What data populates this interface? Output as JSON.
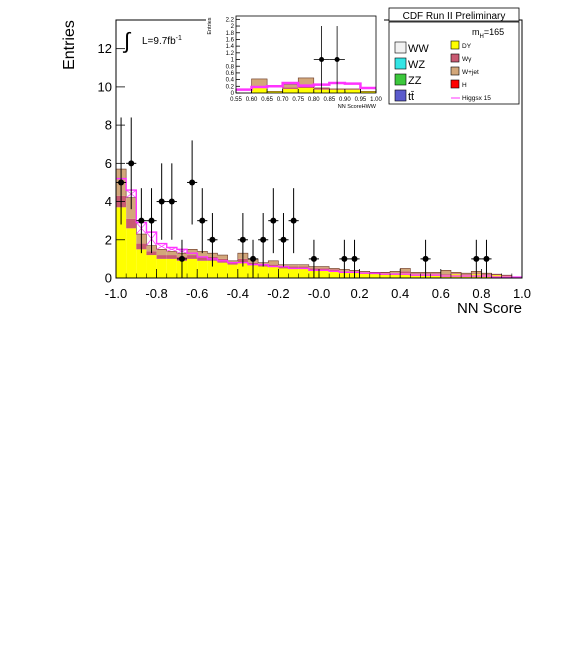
{
  "chart_data": [
    {
      "type": "bar",
      "title": "CDF Run II Preliminary",
      "xlabel": "NN Score",
      "ylabel": "Entries",
      "xlim": [
        -1.0,
        1.0
      ],
      "ylim": [
        0,
        13.5
      ],
      "x_ticks": [
        "-1.0",
        "-0.8",
        "-0.6",
        "-0.4",
        "-0.2",
        "-0.0",
        "0.2",
        "0.4",
        "0.6",
        "0.8",
        "1.0"
      ],
      "x_tick_values": [
        -1.0,
        -0.8,
        -0.6,
        -0.4,
        -0.2,
        0.0,
        0.2,
        0.4,
        0.6,
        0.8,
        1.0
      ],
      "y_ticks": [
        "0",
        "2",
        "4",
        "6",
        "8",
        "10",
        "12"
      ],
      "y_tick_values": [
        0,
        2,
        4,
        6,
        8,
        10,
        12
      ],
      "luminosity_label": "L=9.7fb",
      "luminosity_exponent": "-1",
      "mass_label": "m",
      "mass_subscript": "H",
      "mass_value": "=165",
      "legend_placement": "top-right",
      "legend_left": [
        {
          "label": "WW",
          "color": "#f2f2f2"
        },
        {
          "label": "WZ",
          "color": "#33e5e5"
        },
        {
          "label": "ZZ",
          "color": "#3cc83c"
        },
        {
          "label": "tt̄",
          "color": "#5a5acc"
        }
      ],
      "legend_right": [
        {
          "label": "DY",
          "color": "#ffff00",
          "kind": "box"
        },
        {
          "label": "Wγ",
          "color": "#c85a72",
          "kind": "box"
        },
        {
          "label": "W+jet",
          "color": "#d2a77a",
          "kind": "box"
        },
        {
          "label": "H",
          "color": "#ff0000",
          "kind": "box"
        },
        {
          "label": "Higgsx 15",
          "color": "#ff33ff",
          "kind": "line"
        }
      ],
      "bin_width": 0.05,
      "bin_edges_start": -1.0,
      "bins": [
        {
          "dy": 3.7,
          "wgamma": 0.6,
          "wjet": 1.4
        },
        {
          "dy": 2.6,
          "wgamma": 0.5,
          "wjet": 1.1
        },
        {
          "dy": 1.5,
          "wgamma": 0.3,
          "wjet": 0.5
        },
        {
          "dy": 1.2,
          "wgamma": 0.2,
          "wjet": 0.3
        },
        {
          "dy": 1.0,
          "wgamma": 0.2,
          "wjet": 0.3
        },
        {
          "dy": 1.0,
          "wgamma": 0.2,
          "wjet": 0.2
        },
        {
          "dy": 0.9,
          "wgamma": 0.2,
          "wjet": 0.2
        },
        {
          "dy": 1.0,
          "wgamma": 0.2,
          "wjet": 0.3
        },
        {
          "dy": 0.9,
          "wgamma": 0.2,
          "wjet": 0.3
        },
        {
          "dy": 0.9,
          "wgamma": 0.2,
          "wjet": 0.2
        },
        {
          "dy": 0.8,
          "wgamma": 0.2,
          "wjet": 0.2
        },
        {
          "dy": 0.7,
          "wgamma": 0.1,
          "wjet": 0.1
        },
        {
          "dy": 0.8,
          "wgamma": 0.2,
          "wjet": 0.3
        },
        {
          "dy": 0.7,
          "wgamma": 0.1,
          "wjet": 0.2
        },
        {
          "dy": 0.6,
          "wgamma": 0.1,
          "wjet": 0.1
        },
        {
          "dy": 0.6,
          "wgamma": 0.1,
          "wjet": 0.2
        },
        {
          "dy": 0.5,
          "wgamma": 0.1,
          "wjet": 0.1
        },
        {
          "dy": 0.5,
          "wgamma": 0.1,
          "wjet": 0.1
        },
        {
          "dy": 0.5,
          "wgamma": 0.1,
          "wjet": 0.1
        },
        {
          "dy": 0.4,
          "wgamma": 0.1,
          "wjet": 0.1
        },
        {
          "dy": 0.4,
          "wgamma": 0.1,
          "wjet": 0.1
        },
        {
          "dy": 0.35,
          "wgamma": 0.1,
          "wjet": 0.05
        },
        {
          "dy": 0.3,
          "wgamma": 0.05,
          "wjet": 0.1
        },
        {
          "dy": 0.3,
          "wgamma": 0.05,
          "wjet": 0.05
        },
        {
          "dy": 0.25,
          "wgamma": 0.05,
          "wjet": 0.05
        },
        {
          "dy": 0.2,
          "wgamma": 0.05,
          "wjet": 0.05
        },
        {
          "dy": 0.25,
          "wgamma": 0.05,
          "wjet": 0.0
        },
        {
          "dy": 0.2,
          "wgamma": 0.05,
          "wjet": 0.1
        },
        {
          "dy": 0.25,
          "wgamma": 0.1,
          "wjet": 0.15
        },
        {
          "dy": 0.2,
          "wgamma": 0.05,
          "wjet": 0.05
        },
        {
          "dy": 0.2,
          "wgamma": 0.05,
          "wjet": 0.05
        },
        {
          "dy": 0.2,
          "wgamma": 0.05,
          "wjet": 0.05
        },
        {
          "dy": 0.15,
          "wgamma": 0.05,
          "wjet": 0.2
        },
        {
          "dy": 0.2,
          "wgamma": 0.05,
          "wjet": 0.05
        },
        {
          "dy": 0.15,
          "wgamma": 0.05,
          "wjet": 0.05
        },
        {
          "dy": 0.2,
          "wgamma": 0.05,
          "wjet": 0.1
        },
        {
          "dy": 0.15,
          "wgamma": 0.05,
          "wjet": 0.05
        },
        {
          "dy": 0.15,
          "wgamma": 0.05,
          "wjet": 0.0
        },
        {
          "dy": 0.1,
          "wgamma": 0.05,
          "wjet": 0.0
        },
        {
          "dy": 0.05,
          "wgamma": 0.0,
          "wjet": 0.0
        }
      ],
      "signal_x15": [
        5.2,
        4.6,
        2.9,
        2.4,
        1.8,
        1.6,
        1.5,
        1.3,
        1.1,
        1.0,
        0.9,
        0.8,
        0.8,
        0.7,
        0.7,
        0.6,
        0.6,
        0.5,
        0.5,
        0.4,
        0.4,
        0.35,
        0.3,
        0.3,
        0.25,
        0.25,
        0.2,
        0.2,
        0.2,
        0.15,
        0.15,
        0.15,
        0.1,
        0.1,
        0.1,
        0.1,
        0.1,
        0.05,
        0.05,
        0.05
      ],
      "data_points": [
        {
          "x": -0.975,
          "y": 5,
          "yerr_low": 2.2,
          "yerr_high": 3.4
        },
        {
          "x": -0.925,
          "y": 6,
          "yerr_low": 2.4,
          "yerr_high": 2.4
        },
        {
          "x": -0.875,
          "y": 3,
          "yerr_low": 1.7,
          "yerr_high": 1.7
        },
        {
          "x": -0.825,
          "y": 3,
          "yerr_low": 1.7,
          "yerr_high": 1.7
        },
        {
          "x": -0.775,
          "y": 4,
          "yerr_low": 2.0,
          "yerr_high": 2.0
        },
        {
          "x": -0.725,
          "y": 4,
          "yerr_low": 2.0,
          "yerr_high": 2.0
        },
        {
          "x": -0.675,
          "y": 1,
          "yerr_low": 1.0,
          "yerr_high": 1.0
        },
        {
          "x": -0.625,
          "y": 5,
          "yerr_low": 2.2,
          "yerr_high": 2.2
        },
        {
          "x": -0.575,
          "y": 3,
          "yerr_low": 1.7,
          "yerr_high": 1.7
        },
        {
          "x": -0.525,
          "y": 2,
          "yerr_low": 1.4,
          "yerr_high": 1.4
        },
        {
          "x": -0.375,
          "y": 2,
          "yerr_low": 1.4,
          "yerr_high": 1.4
        },
        {
          "x": -0.325,
          "y": 1,
          "yerr_low": 1.0,
          "yerr_high": 1.0
        },
        {
          "x": -0.275,
          "y": 2,
          "yerr_low": 1.4,
          "yerr_high": 1.4
        },
        {
          "x": -0.225,
          "y": 3,
          "yerr_low": 1.7,
          "yerr_high": 1.7
        },
        {
          "x": -0.175,
          "y": 2,
          "yerr_low": 1.4,
          "yerr_high": 1.4
        },
        {
          "x": -0.125,
          "y": 3,
          "yerr_low": 1.7,
          "yerr_high": 1.7
        },
        {
          "x": -0.025,
          "y": 1,
          "yerr_low": 1.0,
          "yerr_high": 1.0
        },
        {
          "x": 0.125,
          "y": 1,
          "yerr_low": 1.0,
          "yerr_high": 1.0
        },
        {
          "x": 0.175,
          "y": 1,
          "yerr_low": 1.0,
          "yerr_high": 1.0
        },
        {
          "x": 0.525,
          "y": 1,
          "yerr_low": 1.0,
          "yerr_high": 1.0
        },
        {
          "x": 0.775,
          "y": 1,
          "yerr_low": 1.0,
          "yerr_high": 1.0
        },
        {
          "x": 0.825,
          "y": 1,
          "yerr_low": 1.0,
          "yerr_high": 1.0
        }
      ]
    },
    {
      "type": "bar",
      "title": "",
      "xlabel": "NN ScoreHWW",
      "ylabel": "Entries",
      "xlim": [
        0.55,
        1.0
      ],
      "ylim": [
        0,
        2.3
      ],
      "x_ticks": [
        "0.55",
        "0.60",
        "0.65",
        "0.70",
        "0.75",
        "0.80",
        "0.85",
        "0.90",
        "0.95",
        "1.00"
      ],
      "x_tick_values": [
        0.55,
        0.6,
        0.65,
        0.7,
        0.75,
        0.8,
        0.85,
        0.9,
        0.95,
        1.0
      ],
      "y_ticks": [
        "0",
        "0.2",
        "0.4",
        "0.6",
        "0.8",
        "1",
        "1.2",
        "1.4",
        "1.6",
        "1.8",
        "2",
        "2.2"
      ],
      "y_tick_values": [
        0,
        0.2,
        0.4,
        0.6,
        0.8,
        1.0,
        1.2,
        1.4,
        1.6,
        1.8,
        2.0,
        2.2
      ],
      "bin_width": 0.05,
      "bin_edges_start": 0.55,
      "bins": [
        {
          "dy": 0.0,
          "wgamma": 0.0,
          "wjet": 0.0
        },
        {
          "dy": 0.15,
          "wgamma": 0.05,
          "wjet": 0.22
        },
        {
          "dy": 0.05,
          "wgamma": 0.0,
          "wjet": 0.0
        },
        {
          "dy": 0.12,
          "wgamma": 0.05,
          "wjet": 0.08
        },
        {
          "dy": 0.15,
          "wgamma": 0.05,
          "wjet": 0.25
        },
        {
          "dy": 0.1,
          "wgamma": 0.05,
          "wjet": 0.0
        },
        {
          "dy": 0.1,
          "wgamma": 0.02,
          "wjet": 0.0
        },
        {
          "dy": 0.1,
          "wgamma": 0.02,
          "wjet": 0.0
        },
        {
          "dy": 0.05,
          "wgamma": 0.0,
          "wjet": 0.0
        }
      ],
      "signal_x15": [
        0.1,
        0.18,
        0.2,
        0.3,
        0.22,
        0.25,
        0.3,
        0.28,
        0.15
      ],
      "data_points": [
        {
          "x": 0.825,
          "y": 1,
          "yerr_low": 1.0,
          "yerr_high": 1.0,
          "xerr": 0.025
        },
        {
          "x": 0.875,
          "y": 1,
          "yerr_low": 1.0,
          "yerr_high": 1.0,
          "xerr": 0.025
        }
      ]
    }
  ]
}
